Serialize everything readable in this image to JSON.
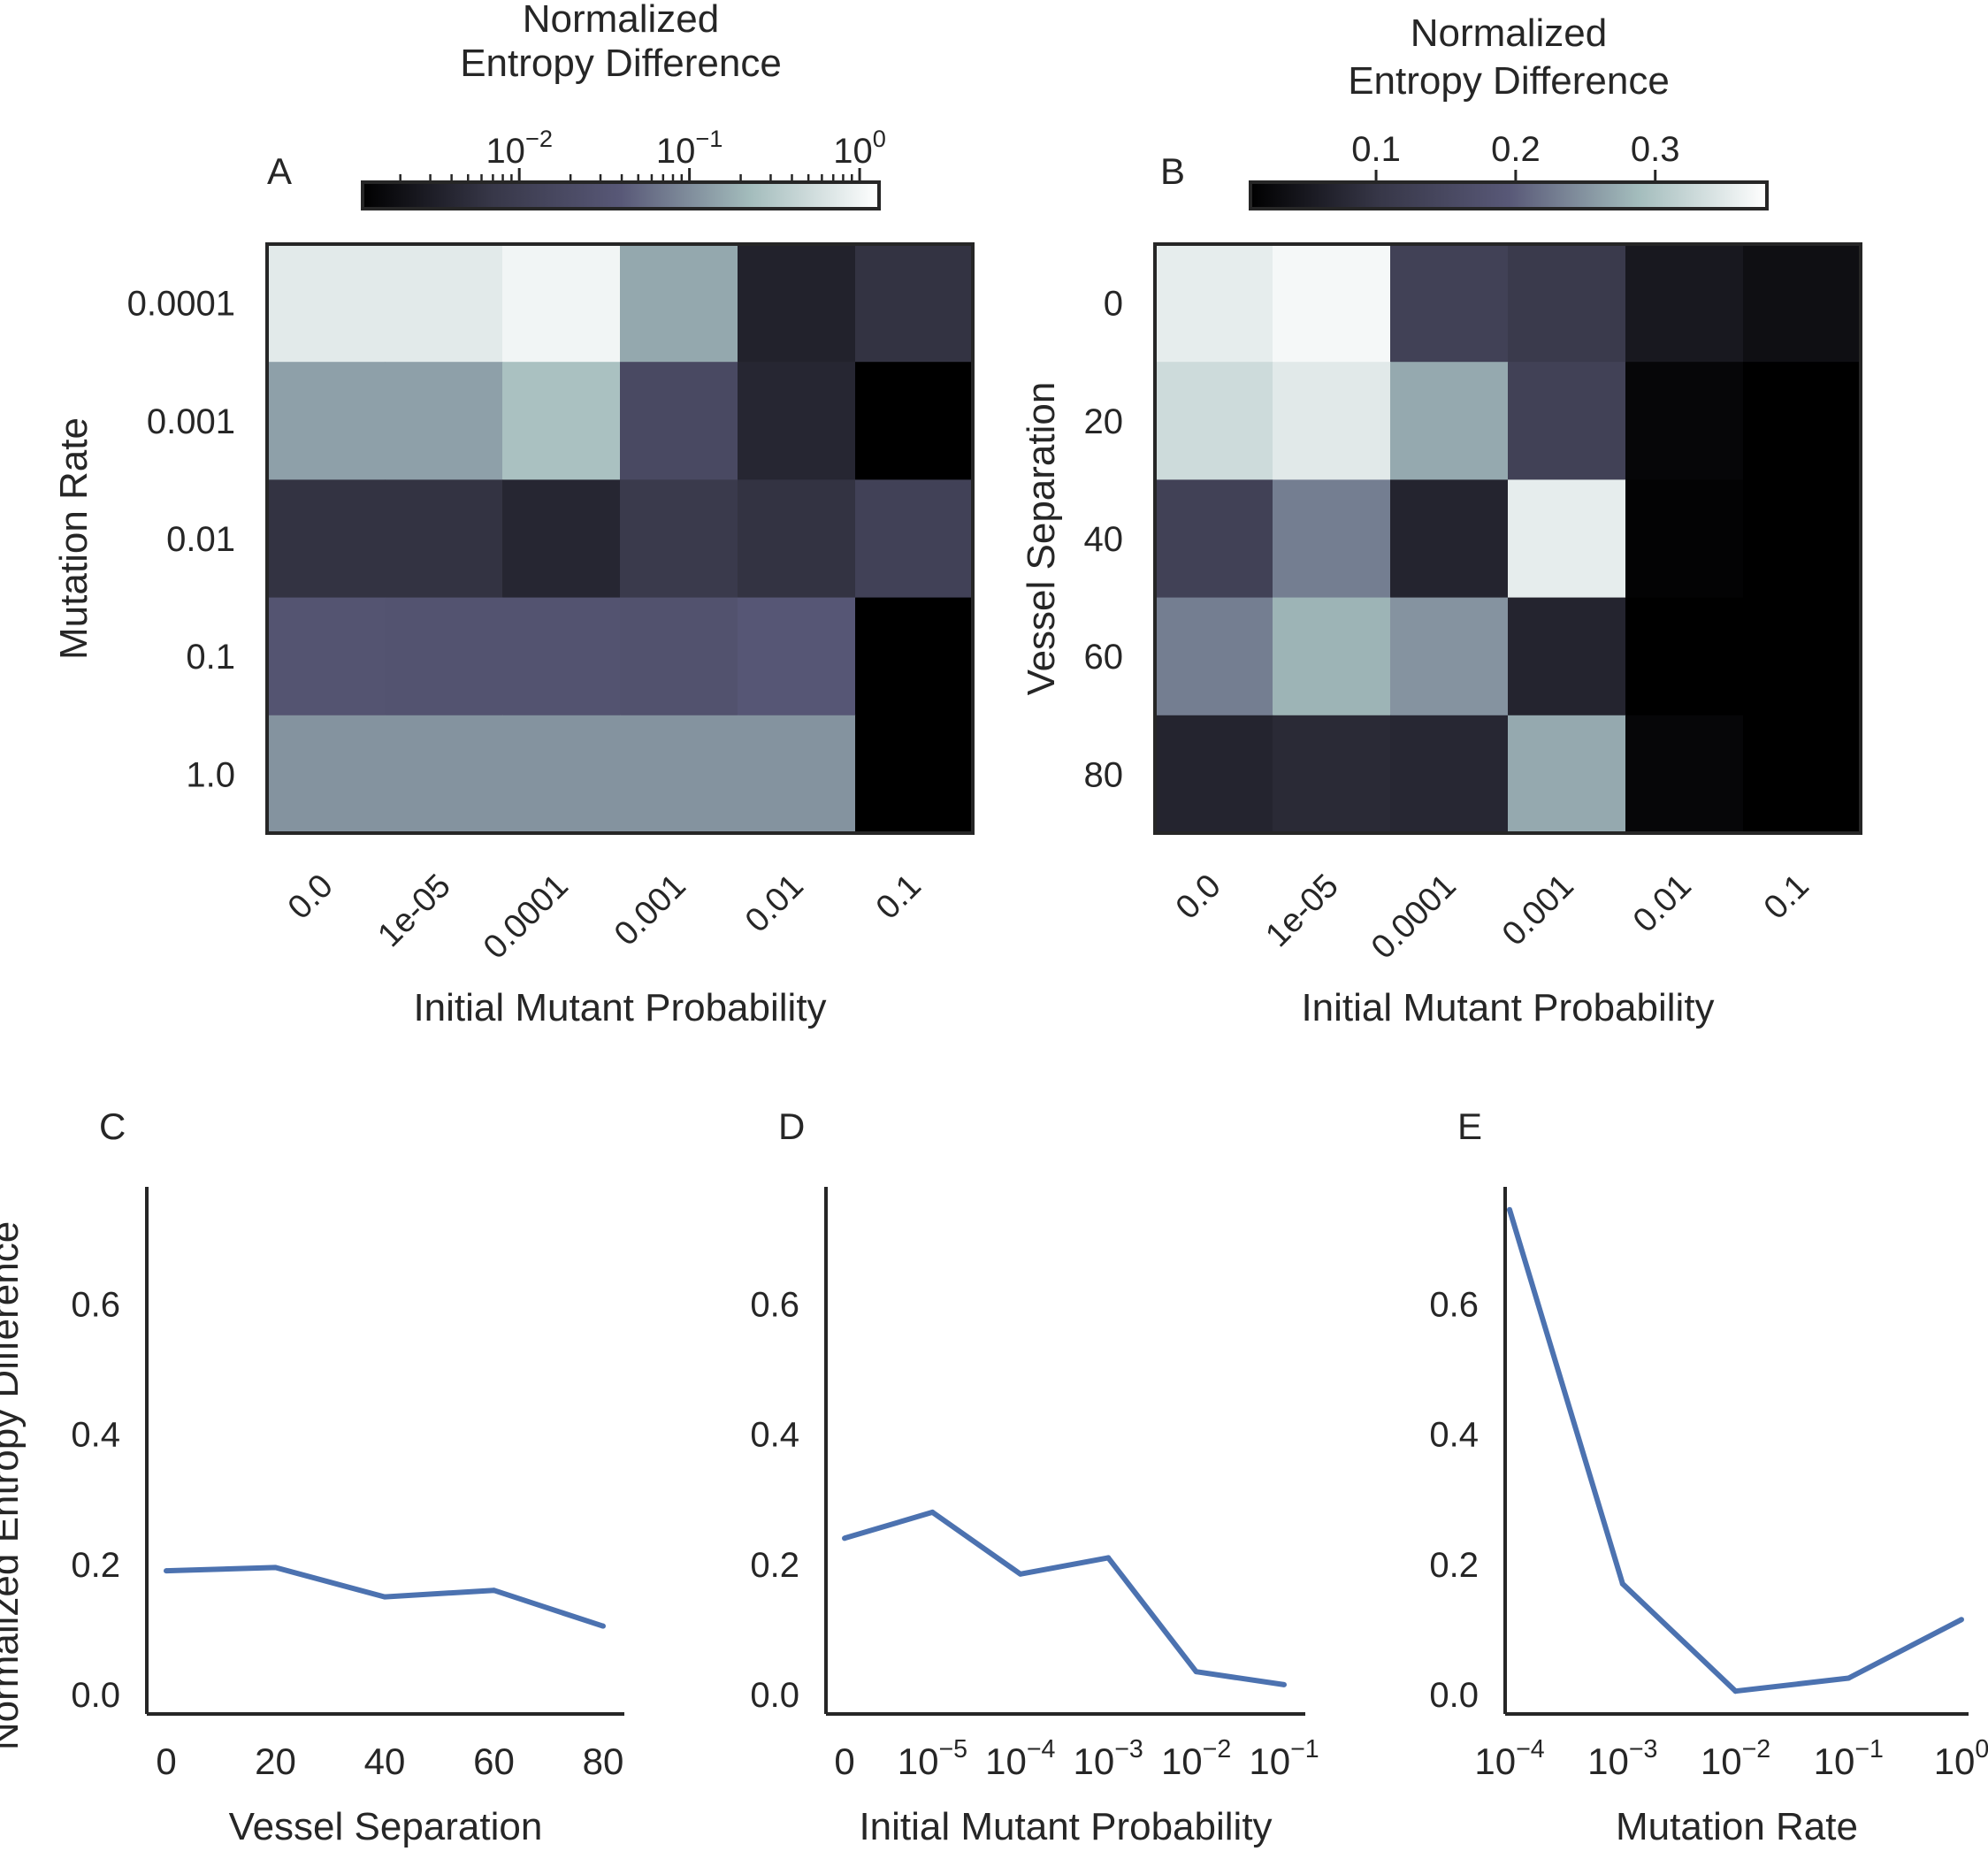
{
  "chart_data": [
    {
      "panel": "A",
      "type": "heatmap",
      "xlabel": "Initial Mutant Probability",
      "ylabel": "Mutation Rate",
      "x_categories": [
        "0.0",
        "1e-05",
        "0.0001",
        "0.001",
        "0.01",
        "0.1"
      ],
      "y_categories": [
        "0.0001",
        "0.001",
        "0.01",
        "0.1",
        "1.0"
      ],
      "values": [
        [
          0.75,
          0.75,
          1.0,
          0.16,
          0.0035,
          0.006
        ],
        [
          0.14,
          0.14,
          0.26,
          0.018,
          0.004,
          0.0
        ],
        [
          0.006,
          0.006,
          0.004,
          0.008,
          0.006,
          0.012
        ],
        [
          0.032,
          0.03,
          0.03,
          0.028,
          0.036,
          0.0
        ],
        [
          0.11,
          0.11,
          0.11,
          0.11,
          0.11,
          0.0
        ]
      ],
      "colorbar": {
        "label": "Normalized Entropy Difference",
        "scale": "log",
        "range": [
          0.0012,
          1.3
        ],
        "ticks": [
          "10^-2",
          "10^-1",
          "10^0"
        ],
        "position": "top"
      }
    },
    {
      "panel": "B",
      "type": "heatmap",
      "xlabel": "Initial Mutant Probability",
      "ylabel": "Vessel Separation",
      "x_categories": [
        "0.0",
        "1e-05",
        "0.0001",
        "0.001",
        "0.01",
        "0.1"
      ],
      "y_categories": [
        "0",
        "20",
        "40",
        "60",
        "80"
      ],
      "values": [
        [
          0.355,
          0.37,
          0.13,
          0.11,
          0.05,
          0.035
        ],
        [
          0.33,
          0.35,
          0.27,
          0.13,
          0.02,
          0.0
        ],
        [
          0.13,
          0.23,
          0.07,
          0.355,
          0.015,
          0.0
        ],
        [
          0.23,
          0.28,
          0.25,
          0.07,
          0.0,
          0.0
        ],
        [
          0.07,
          0.08,
          0.075,
          0.27,
          0.02,
          0.0
        ]
      ],
      "colorbar": {
        "label": "Normalized Entropy Difference",
        "scale": "linear",
        "range": [
          0.01,
          0.38
        ],
        "ticks": [
          0.1,
          0.2,
          0.3
        ],
        "position": "top"
      }
    },
    {
      "panel": "C",
      "type": "line",
      "xlabel": "Vessel Separation",
      "ylabel": "Normalized Entropy Difference",
      "x": [
        0,
        20,
        40,
        60,
        80
      ],
      "values": [
        0.19,
        0.195,
        0.15,
        0.16,
        0.105
      ],
      "xticks": [
        "0",
        "20",
        "40",
        "60",
        "80"
      ],
      "yticks": [
        "0.0",
        "0.2",
        "0.4",
        "0.6"
      ],
      "ylim": [
        -0.03,
        0.78
      ]
    },
    {
      "panel": "D",
      "type": "line",
      "xlabel": "Initial Mutant Probability",
      "ylabel": "",
      "x": [
        "0",
        "10^-5",
        "10^-4",
        "10^-3",
        "10^-2",
        "10^-1"
      ],
      "values": [
        0.24,
        0.28,
        0.185,
        0.21,
        0.035,
        0.015
      ],
      "xticks": [
        "0",
        "10^-5",
        "10^-4",
        "10^-3",
        "10^-2",
        "10^-1"
      ],
      "yticks": [
        "0.0",
        "0.2",
        "0.4",
        "0.6"
      ],
      "ylim": [
        -0.03,
        0.78
      ]
    },
    {
      "panel": "E",
      "type": "line",
      "xlabel": "Mutation Rate",
      "ylabel": "",
      "x": [
        "10^-4",
        "10^-3",
        "10^-2",
        "10^-1",
        "10^0"
      ],
      "values": [
        0.745,
        0.17,
        0.005,
        0.025,
        0.115
      ],
      "xticks": [
        "10^-4",
        "10^-3",
        "10^-2",
        "10^-1",
        "10^0"
      ],
      "yticks": [
        "0.0",
        "0.2",
        "0.4",
        "0.6"
      ],
      "ylim": [
        -0.03,
        0.78
      ]
    }
  ],
  "colors": {
    "line": "#4c72b0",
    "axis": "#262626",
    "colormap": [
      "#000000",
      "#373748",
      "#585877",
      "#a3bcbc",
      "#ffffff"
    ]
  }
}
